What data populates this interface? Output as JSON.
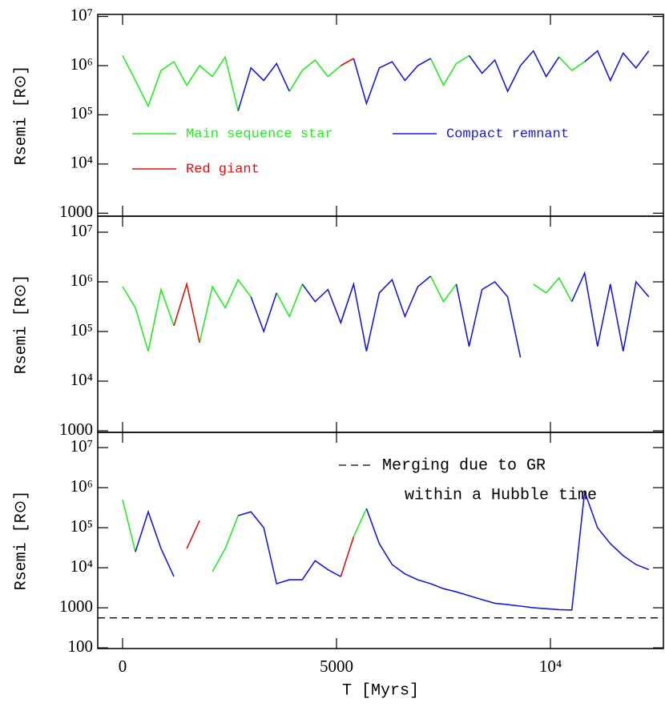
{
  "chart_data": [
    {
      "type": "line",
      "ylabel": "Rsemi [R⊙]",
      "log_y": true,
      "xlim": [
        -580,
        12640
      ],
      "ylim": [
        870,
        11000000
      ],
      "yticks": [
        {
          "value": 10000000,
          "label": "10⁷"
        },
        {
          "value": 1000000,
          "label": "10⁶"
        },
        {
          "value": 100000,
          "label": "10⁵"
        },
        {
          "value": 10000,
          "label": "10⁴"
        },
        1000
      ],
      "x": [
        0,
        300,
        600,
        900,
        1200,
        1500,
        1800,
        2100,
        2400,
        2700,
        3000,
        3300,
        3600,
        3900,
        4200,
        4500,
        4800,
        5100,
        5400,
        5700,
        6000,
        6300,
        6600,
        6900,
        7200,
        7500,
        7800,
        8100,
        8400,
        8700,
        9000,
        9300,
        9600,
        9900,
        10200,
        10500,
        10800,
        11100,
        11400,
        11700,
        12000,
        12300
      ],
      "series": [
        {
          "name": "Main sequence star",
          "color": "#22ee22",
          "values": [
            1600000.0,
            500000.0,
            150000.0,
            800000.0,
            1200000.0,
            400000.0,
            1000000.0,
            600000.0,
            1500000.0,
            120000.0,
            null,
            null,
            null,
            300000.0,
            800000.0,
            1300000.0,
            600000.0,
            1000000.0,
            null,
            null,
            null,
            null,
            null,
            null,
            1400000.0,
            400000.0,
            1100000.0,
            1600000.0,
            null,
            null,
            null,
            null,
            null,
            null,
            1500000.0,
            800000.0,
            1200000.0,
            null,
            null,
            null,
            null,
            null
          ]
        },
        {
          "name": "Compact remnant",
          "color": "#1a1adc",
          "values": [
            null,
            null,
            null,
            null,
            null,
            null,
            null,
            null,
            null,
            120000.0,
            900000.0,
            500000.0,
            1100000.0,
            300000.0,
            null,
            null,
            null,
            null,
            1400000.0,
            170000.0,
            900000.0,
            1200000.0,
            500000.0,
            1000000.0,
            1400000.0,
            null,
            null,
            1600000.0,
            700000.0,
            1300000.0,
            300000.0,
            1000000.0,
            2000000.0,
            600000.0,
            1500000.0,
            null,
            1200000.0,
            2000000.0,
            500000.0,
            1800000.0,
            900000.0,
            2000000.0
          ]
        },
        {
          "name": "Red giant",
          "color": "#e01010",
          "values": [
            null,
            null,
            null,
            null,
            null,
            null,
            null,
            null,
            null,
            null,
            null,
            null,
            null,
            null,
            null,
            null,
            null,
            1000000.0,
            1400000.0,
            null,
            null,
            null,
            null,
            null,
            null,
            null,
            null,
            null,
            null,
            null,
            null,
            null,
            null,
            null,
            null,
            null,
            null,
            null,
            null,
            null,
            null,
            null
          ]
        }
      ]
    },
    {
      "type": "line",
      "ylabel": "Rsemi [R⊙]",
      "log_y": true,
      "xlim": [
        -580,
        12640
      ],
      "ylim": [
        930,
        21000000
      ],
      "yticks": [
        {
          "value": 10000000,
          "label": "10⁷"
        },
        {
          "value": 1000000,
          "label": "10⁶"
        },
        {
          "value": 100000,
          "label": "10⁵"
        },
        {
          "value": 10000,
          "label": "10⁴"
        },
        1000
      ],
      "x": [
        0,
        300,
        600,
        900,
        1200,
        1500,
        1800,
        2100,
        2400,
        2700,
        3000,
        3300,
        3600,
        3900,
        4200,
        4500,
        4800,
        5100,
        5400,
        5700,
        6000,
        6300,
        6600,
        6900,
        7200,
        7500,
        7800,
        8100,
        8400,
        8700,
        9000,
        9300,
        9600,
        9900,
        10200,
        10500,
        10800,
        11100,
        11400,
        11700,
        12000,
        12300
      ],
      "series": [
        {
          "color": "#22ee22",
          "values": [
            800000.0,
            300000.0,
            40000.0,
            700000.0,
            130000.0,
            null,
            60000.0,
            800000.0,
            300000.0,
            1100000.0,
            500000.0,
            null,
            600000.0,
            200000.0,
            900000.0,
            null,
            null,
            150000.0,
            900000.0,
            null,
            null,
            null,
            null,
            null,
            1300000.0,
            400000.0,
            900000.0,
            null,
            null,
            null,
            null,
            null,
            900000.0,
            600000.0,
            1200000.0,
            400000.0,
            null,
            null,
            null,
            null,
            null,
            null
          ]
        },
        {
          "color": "#1a1adc",
          "values": [
            null,
            null,
            null,
            null,
            null,
            null,
            null,
            null,
            null,
            null,
            500000.0,
            100000.0,
            600000.0,
            null,
            900000.0,
            400000.0,
            700000.0,
            150000.0,
            900000.0,
            40000.0,
            600000.0,
            1100000.0,
            200000.0,
            800000.0,
            1300000.0,
            null,
            900000.0,
            50000.0,
            700000.0,
            1000000.0,
            500000.0,
            30000.0,
            null,
            null,
            null,
            400000.0,
            1500000.0,
            50000.0,
            900000.0,
            40000.0,
            1000000.0,
            500000.0
          ]
        },
        {
          "color": "#e01010",
          "values": [
            null,
            null,
            null,
            null,
            130000.0,
            900000.0,
            60000.0,
            null,
            null,
            null,
            null,
            null,
            null,
            null,
            null,
            null,
            null,
            null,
            null,
            null,
            null,
            null,
            null,
            null,
            null,
            null,
            null,
            null,
            null,
            null,
            null,
            null,
            null,
            null,
            null,
            null,
            null,
            null,
            null,
            null,
            null,
            null
          ]
        }
      ]
    },
    {
      "type": "line",
      "ylabel": "Rsemi [R⊙]",
      "xlabel": "T [Myrs]",
      "log_y": true,
      "xlim": [
        -580,
        12640
      ],
      "ylim": [
        96,
        24000000
      ],
      "xticks": [
        0,
        5000,
        {
          "value": 10000,
          "label": "10⁴"
        }
      ],
      "yticks": [
        {
          "value": 10000000,
          "label": "10⁷"
        },
        {
          "value": 1000000,
          "label": "10⁶"
        },
        {
          "value": 100000,
          "label": "10⁵"
        },
        {
          "value": 10000,
          "label": "10⁴"
        },
        1000,
        100
      ],
      "x": [
        0,
        300,
        600,
        900,
        1200,
        1500,
        1800,
        2100,
        2400,
        2700,
        3000,
        3300,
        3600,
        3900,
        4200,
        4500,
        4800,
        5100,
        5400,
        5700,
        6000,
        6300,
        6600,
        6900,
        7200,
        7500,
        7800,
        8100,
        8400,
        8700,
        9000,
        9300,
        9600,
        9900,
        10200,
        10500,
        10800,
        11100,
        11400,
        11700,
        12000,
        12300
      ],
      "series": [
        {
          "color": "#22ee22",
          "values": [
            500000.0,
            25000.0,
            null,
            null,
            null,
            null,
            null,
            8000.0,
            30000.0,
            200000.0,
            null,
            null,
            null,
            null,
            null,
            null,
            null,
            null,
            60000.0,
            300000.0,
            null,
            null,
            null,
            null,
            null,
            null,
            null,
            null,
            null,
            null,
            null,
            null,
            null,
            null,
            null,
            null,
            null,
            null,
            null,
            null,
            null,
            null
          ]
        },
        {
          "color": "#1a1adc",
          "values": [
            null,
            25000.0,
            250000.0,
            30000.0,
            6000.0,
            null,
            null,
            null,
            null,
            200000.0,
            250000.0,
            100000.0,
            4000.0,
            5000.0,
            5000.0,
            15000.0,
            9000.0,
            6000.0,
            null,
            300000.0,
            40000.0,
            12000.0,
            7000.0,
            5000.0,
            4000.0,
            3000.0,
            2500.0,
            2000.0,
            1600.0,
            1300.0,
            1200.0,
            1100.0,
            1000.0,
            950,
            900,
            880,
            800000.0,
            100000.0,
            40000.0,
            20000.0,
            12000.0,
            9000.0
          ]
        },
        {
          "color": "#e01010",
          "values": [
            null,
            null,
            null,
            null,
            null,
            30000.0,
            150000.0,
            null,
            null,
            null,
            null,
            null,
            null,
            null,
            null,
            null,
            null,
            6000.0,
            60000.0,
            null,
            null,
            null,
            null,
            null,
            null,
            null,
            null,
            null,
            null,
            null,
            null,
            null,
            null,
            null,
            null,
            null,
            null,
            null,
            null,
            null,
            null,
            null
          ]
        }
      ],
      "reference_line": {
        "value": 560,
        "style": "dashed",
        "color": "#000000",
        "label_lines": [
          "Merging due to GR",
          "within a Hubble time"
        ]
      }
    }
  ]
}
